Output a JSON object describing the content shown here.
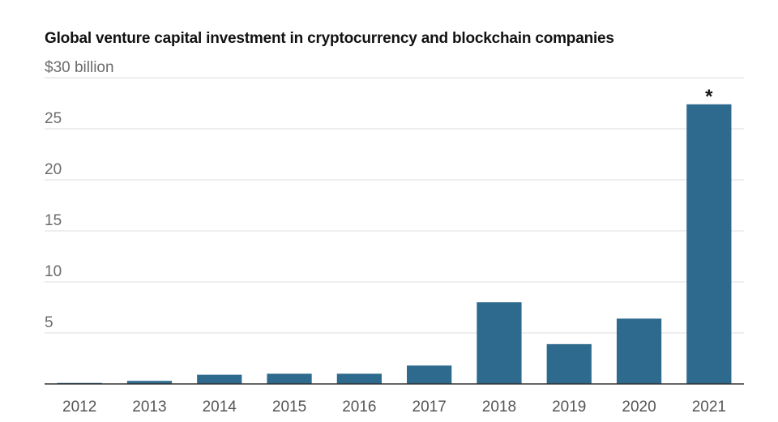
{
  "chart_data": {
    "type": "bar",
    "title": "Global venture capital investment in cryptocurrency and blockchain companies",
    "ylabel": "",
    "xlabel": "",
    "y_top_label": "$30 billion",
    "ylim": [
      0,
      30
    ],
    "yticks": [
      5,
      10,
      15,
      20,
      25,
      30
    ],
    "grid": true,
    "categories": [
      "2012",
      "2013",
      "2014",
      "2015",
      "2016",
      "2017",
      "2018",
      "2019",
      "2020",
      "2021"
    ],
    "values": [
      0.1,
      0.3,
      0.9,
      1.0,
      1.0,
      1.8,
      8.0,
      3.9,
      6.4,
      27.4
    ],
    "bar_color": "#2d6a8d",
    "annotation": {
      "category": "2021",
      "text": "*"
    }
  }
}
